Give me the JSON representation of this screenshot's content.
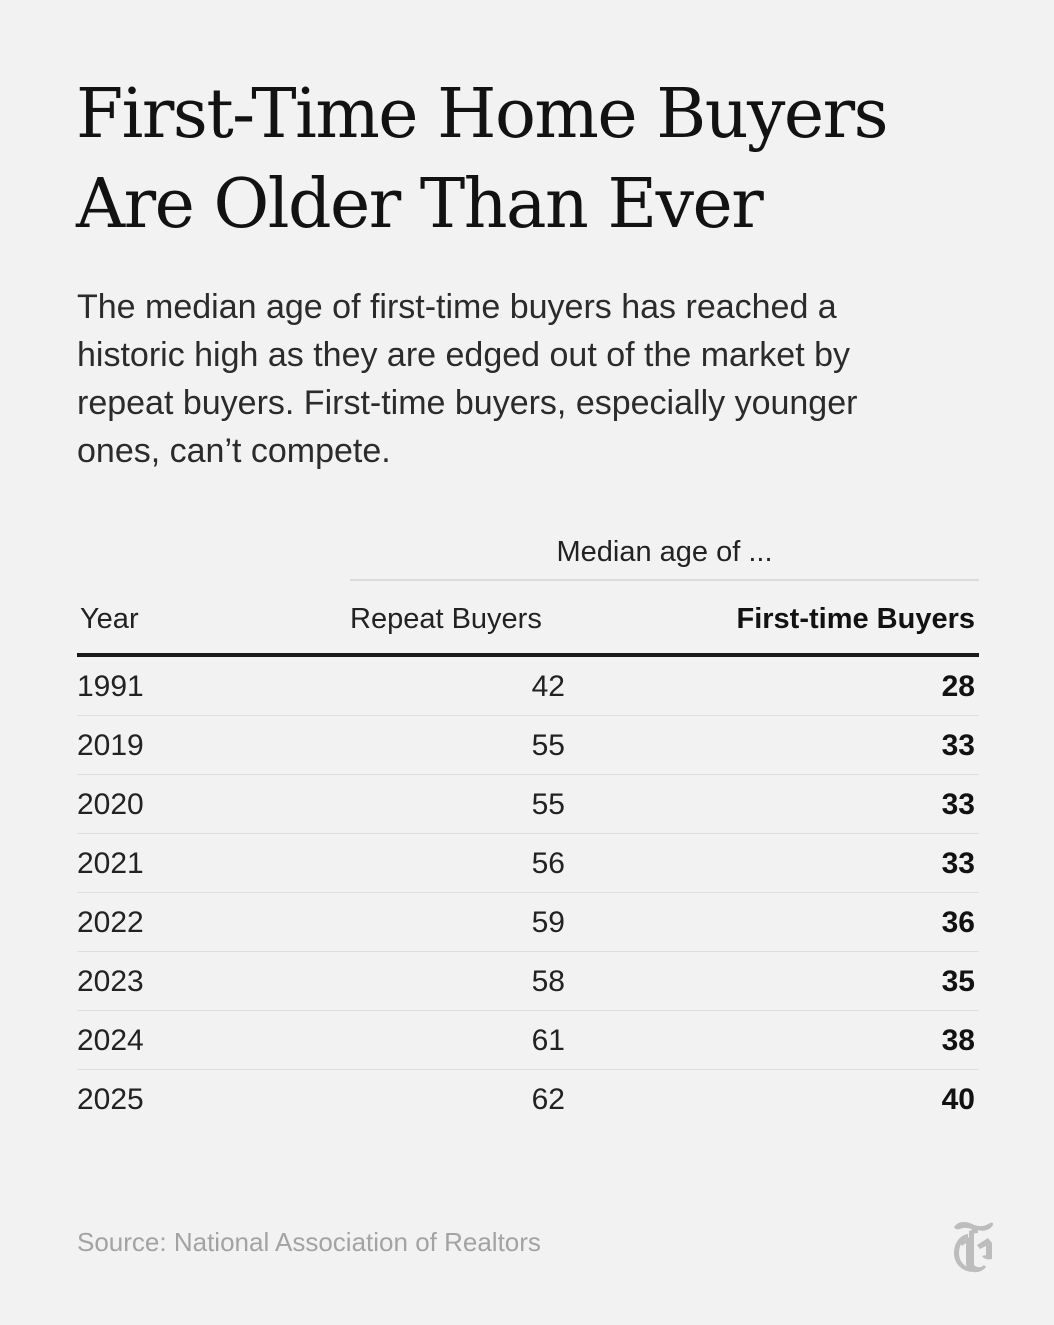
{
  "title": {
    "line1": "First-Time Home Buyers",
    "line2": "Are Older Than Ever"
  },
  "subtitle": {
    "line1": "The median age of first-time buyers has reached a",
    "line2": "historic high as they are edged out of the market by",
    "line3": "repeat buyers. First-time buyers, especially younger",
    "line4": "ones, can’t compete."
  },
  "chart_data": {
    "type": "table",
    "spanner_label": "Median age of ...",
    "columns": [
      "Year",
      "Repeat Buyers",
      "First-time Buyers"
    ],
    "rows": [
      [
        "1991",
        "42",
        "28"
      ],
      [
        "2019",
        "55",
        "33"
      ],
      [
        "2020",
        "55",
        "33"
      ],
      [
        "2021",
        "56",
        "33"
      ],
      [
        "2022",
        "59",
        "36"
      ],
      [
        "2023",
        "58",
        "35"
      ],
      [
        "2024",
        "61",
        "38"
      ],
      [
        "2025",
        "62",
        "40"
      ]
    ]
  },
  "source": "Source: National Association of Realtors",
  "logo": {
    "icon": "nyt-t-logo-icon",
    "color": "#bdbdbd"
  },
  "colors": {
    "background": "#f2f2f3",
    "text": "#121212",
    "rule_heavy": "#1a1a1a",
    "rule_light": "#dedede",
    "source": "#a3a3a3"
  }
}
